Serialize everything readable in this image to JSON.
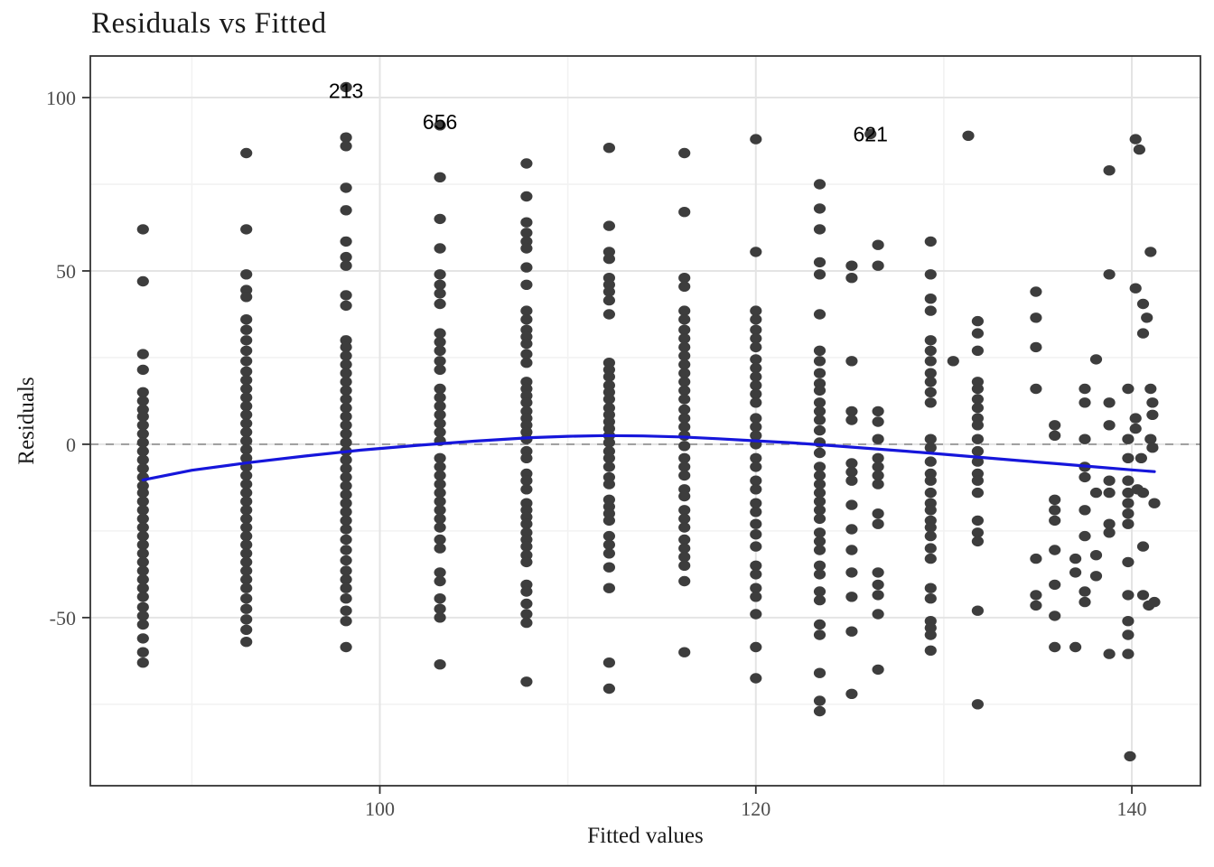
{
  "title": "Residuals vs Fitted",
  "chart_data": {
    "type": "scatter",
    "title": "Residuals vs Fitted",
    "xlabel": "Fitted values",
    "ylabel": "Residuals",
    "xlim": [
      84.6,
      143.65
    ],
    "ylim": [
      -98.5,
      112
    ],
    "x_ticks": [
      100,
      120,
      140
    ],
    "x_minor_ticks": [
      90,
      110,
      130
    ],
    "y_ticks": [
      -50,
      0,
      50,
      100
    ],
    "y_minor_ticks": [
      -75,
      -25,
      25,
      75
    ],
    "grid": true,
    "legend": "none",
    "zero_line": {
      "y": 0,
      "style": "dashed",
      "color": "#909090"
    },
    "colors": {
      "point": "#3d3d3d",
      "smooth": "#1616db",
      "grid_major": "#e4e4e4",
      "grid_minor": "#f2f2f2",
      "panel_border": "#333333",
      "tick": "#333333",
      "tick_label": "#4d4d4d"
    },
    "annotations": [
      {
        "label": "213",
        "x": 98.2,
        "y": 102
      },
      {
        "label": "656",
        "x": 103.2,
        "y": 93
      },
      {
        "label": "621",
        "x": 126.1,
        "y": 89.5
      }
    ],
    "smooth_line": [
      [
        87.4,
        -10.3
      ],
      [
        90,
        -7.5
      ],
      [
        93,
        -5.3
      ],
      [
        96,
        -3.4
      ],
      [
        99,
        -1.7
      ],
      [
        102,
        -0.3
      ],
      [
        105,
        0.9
      ],
      [
        108,
        1.9
      ],
      [
        110,
        2.3
      ],
      [
        112,
        2.5
      ],
      [
        114,
        2.4
      ],
      [
        116,
        2.1
      ],
      [
        118,
        1.6
      ],
      [
        120,
        1.0
      ],
      [
        122,
        0.4
      ],
      [
        124,
        -0.4
      ],
      [
        126,
        -1.2
      ],
      [
        128,
        -2.0
      ],
      [
        130,
        -2.9
      ],
      [
        132,
        -3.8
      ],
      [
        134,
        -4.7
      ],
      [
        136,
        -5.6
      ],
      [
        138,
        -6.5
      ],
      [
        140,
        -7.4
      ],
      [
        141.2,
        -7.9
      ]
    ],
    "point_columns": [
      {
        "x": 87.4,
        "residuals": [
          62,
          47,
          26,
          21.5,
          15,
          12.5,
          10,
          8,
          5.5,
          3,
          0.5,
          -2,
          -4.5,
          -7,
          -9.5,
          -12,
          -14,
          -16.5,
          -19,
          -21.5,
          -24,
          -26.5,
          -29,
          -31.5,
          -34,
          -36.5,
          -39,
          -41.5,
          -44,
          -47,
          -49.5,
          -52,
          -56,
          -60,
          -63
        ]
      },
      {
        "x": 92.9,
        "residuals": [
          84,
          62,
          49,
          44.5,
          42.5,
          36,
          33,
          30,
          27,
          24,
          21,
          18.5,
          16,
          13.5,
          11,
          8.5,
          6,
          3.5,
          1,
          -1.5,
          -4,
          -6.5,
          -9,
          -11.5,
          -14,
          -16.5,
          -19,
          -21.5,
          -24,
          -26.5,
          -29,
          -31.5,
          -34,
          -36.5,
          -39,
          -41.5,
          -44.5,
          -47.5,
          -50.5,
          -53.5,
          -57
        ]
      },
      {
        "x": 98.2,
        "residuals": [
          103,
          88.5,
          86,
          74,
          67.5,
          58.5,
          54,
          51.5,
          43,
          40,
          30,
          28,
          25.5,
          23,
          20.5,
          18,
          15.5,
          13,
          10.5,
          8,
          5.5,
          3,
          0.5,
          -2,
          -4.5,
          -7,
          -9.5,
          -12,
          -14.5,
          -17,
          -19.5,
          -22,
          -24.5,
          -27.5,
          -30.5,
          -33.5,
          -36.5,
          -39,
          -41.5,
          -44.5,
          -48,
          -51,
          -58.5
        ]
      },
      {
        "x": 103.2,
        "residuals": [
          92,
          77,
          65,
          56.5,
          49,
          46,
          43.5,
          40.5,
          32,
          29.5,
          27,
          24,
          21.5,
          16,
          13.5,
          11,
          8.5,
          6,
          3.5,
          1,
          -4,
          -6.5,
          -9,
          -11.5,
          -14,
          -16.5,
          -19,
          -21.5,
          -24,
          -27.5,
          -30,
          -37,
          -39.5,
          -44.5,
          -47.5,
          -50,
          -63.5
        ]
      },
      {
        "x": 107.8,
        "residuals": [
          81,
          71.5,
          64,
          61,
          58.5,
          56.5,
          51,
          46,
          38.5,
          36,
          33,
          31,
          29,
          26,
          23.5,
          18,
          16,
          14,
          12,
          9.5,
          7.5,
          5.5,
          3.5,
          1.5,
          -2,
          -4,
          -8.5,
          -10.5,
          -13,
          -17,
          -19,
          -21,
          -23,
          -25.5,
          -27.5,
          -29.5,
          -32,
          -34,
          -40.5,
          -42.5,
          -46,
          -49,
          -51.5,
          -68.5
        ]
      },
      {
        "x": 112.2,
        "residuals": [
          85.5,
          63,
          55.5,
          53.5,
          48,
          46,
          44,
          41.5,
          37.5,
          23.5,
          21.5,
          19.5,
          17,
          15,
          13,
          10.5,
          8.5,
          6.5,
          4.5,
          2.5,
          0.5,
          -2,
          -4,
          -6.5,
          -9.5,
          -11.5,
          -16,
          -18,
          -20,
          -22,
          -26.5,
          -29,
          -31.5,
          -35.5,
          -41.5,
          -63,
          -70.5
        ]
      },
      {
        "x": 116.2,
        "residuals": [
          84,
          67,
          48,
          45.5,
          38.5,
          36,
          33,
          30.5,
          28,
          25.5,
          23,
          20.5,
          18,
          15.5,
          13,
          10,
          7.5,
          5,
          2.5,
          -0.5,
          -4,
          -6.5,
          -9,
          -13,
          -15,
          -19,
          -21.5,
          -24,
          -27.5,
          -30,
          -32.5,
          -35,
          -39.5,
          -60
        ]
      },
      {
        "x": 120.0,
        "residuals": [
          88,
          55.5,
          38.5,
          36,
          33,
          30.5,
          28,
          24.5,
          22,
          19.5,
          17,
          14.5,
          12,
          7.5,
          5,
          2.5,
          0,
          -4,
          -6.5,
          -10.5,
          -13,
          -17,
          -19.5,
          -23,
          -26,
          -29.5,
          -35,
          -37.5,
          -41.5,
          -44,
          -49,
          -58.5,
          -67.5
        ]
      },
      {
        "x": 123.4,
        "residuals": [
          75,
          68,
          62,
          52.5,
          49,
          37.5,
          27,
          24,
          20.5,
          17.5,
          15.5,
          12,
          9.5,
          7,
          4,
          0.5,
          -2.5,
          -6.5,
          -9,
          -11.5,
          -14,
          -16.5,
          -19,
          -21.5,
          -25.5,
          -28,
          -30.5,
          -35,
          -37.5,
          -42.5,
          -45,
          -52,
          -55,
          -66,
          -74,
          -77
        ]
      },
      {
        "x": 125.1,
        "residuals": [
          51.5,
          48,
          24,
          9.5,
          7,
          -5.5,
          -8,
          -10.5,
          -17.5,
          -24.5,
          -30.5,
          -37,
          -44,
          -54,
          -72
        ]
      },
      {
        "x": 126.5,
        "residuals": [
          57.5,
          51.5,
          9.5,
          6.5,
          1.5,
          -4,
          -6.5,
          -9,
          -11.5,
          -20,
          -23,
          -37,
          -40.5,
          -43.5,
          -49,
          -65
        ]
      },
      {
        "x": 129.3,
        "residuals": [
          58.5,
          49,
          42,
          38.5,
          30,
          27,
          24,
          20.5,
          18,
          15,
          12,
          1.5,
          -1,
          -5,
          -8.5,
          -10.5,
          -14,
          -17,
          -19,
          -22,
          -24,
          -26.5,
          -30,
          -33,
          -41.5,
          -44.5,
          -51,
          -53,
          -55,
          -59.5
        ]
      },
      {
        "x": 131.8,
        "residuals": [
          35.5,
          32,
          27,
          18,
          16,
          13,
          10.5,
          7.5,
          5.5,
          1.5,
          -2,
          -5,
          -8.5,
          -10.5,
          -14,
          -22,
          -25.5,
          -28,
          -48,
          -75
        ]
      }
    ],
    "scatter_points": [
      [
        126.1,
        89.5
      ],
      [
        130.5,
        24
      ],
      [
        131.3,
        89
      ],
      [
        134.9,
        44
      ],
      [
        134.9,
        36.5
      ],
      [
        134.9,
        28
      ],
      [
        134.9,
        16
      ],
      [
        134.9,
        -33
      ],
      [
        134.9,
        -43.5
      ],
      [
        134.9,
        -46.5
      ],
      [
        135.9,
        5.5
      ],
      [
        135.9,
        2.5
      ],
      [
        135.9,
        -16
      ],
      [
        135.9,
        -19
      ],
      [
        135.9,
        -22
      ],
      [
        135.9,
        -30.5
      ],
      [
        135.9,
        -40.5
      ],
      [
        135.9,
        -49.5
      ],
      [
        135.9,
        -58.5
      ],
      [
        137,
        -33
      ],
      [
        137,
        -37
      ],
      [
        137,
        -58.5
      ],
      [
        137.5,
        16
      ],
      [
        137.5,
        12
      ],
      [
        137.5,
        1.5
      ],
      [
        137.5,
        -6.5
      ],
      [
        137.5,
        -9.5
      ],
      [
        137.5,
        -19
      ],
      [
        137.5,
        -26.5
      ],
      [
        137.5,
        -42.5
      ],
      [
        137.5,
        -45.5
      ],
      [
        138.1,
        24.5
      ],
      [
        138.1,
        -14
      ],
      [
        138.1,
        -32
      ],
      [
        138.1,
        -38
      ],
      [
        138.8,
        79
      ],
      [
        138.8,
        49
      ],
      [
        138.8,
        12
      ],
      [
        138.8,
        5.5
      ],
      [
        138.8,
        -10.5
      ],
      [
        138.8,
        -14
      ],
      [
        138.8,
        -23
      ],
      [
        138.8,
        -25.5
      ],
      [
        138.8,
        -60.5
      ],
      [
        139.8,
        16
      ],
      [
        139.8,
        1.5
      ],
      [
        139.8,
        -4
      ],
      [
        139.8,
        -10.5
      ],
      [
        139.8,
        -14
      ],
      [
        139.8,
        -17
      ],
      [
        139.8,
        -20
      ],
      [
        139.8,
        -23
      ],
      [
        139.8,
        -34
      ],
      [
        139.8,
        -43.5
      ],
      [
        139.8,
        -51
      ],
      [
        139.8,
        -55
      ],
      [
        139.8,
        -60.5
      ],
      [
        139.9,
        -90
      ],
      [
        140.2,
        88
      ],
      [
        140.4,
        85
      ],
      [
        140.2,
        45
      ],
      [
        140.6,
        40.5
      ],
      [
        140.8,
        36.5
      ],
      [
        140.6,
        32
      ],
      [
        140.2,
        7.5
      ],
      [
        140.2,
        4.5
      ],
      [
        140.5,
        -4
      ],
      [
        140.3,
        -13
      ],
      [
        140.6,
        -14
      ],
      [
        140.6,
        -29.5
      ],
      [
        140.6,
        -43.5
      ],
      [
        140.9,
        -46.5
      ],
      [
        141,
        55.5
      ],
      [
        141,
        16
      ],
      [
        141.1,
        12
      ],
      [
        141.1,
        8.5
      ],
      [
        141,
        1.5
      ],
      [
        141.1,
        -1
      ],
      [
        141.2,
        -17
      ],
      [
        141.2,
        -45.5
      ]
    ],
    "point_style": {
      "rx": 6.6,
      "ry": 5.7
    }
  }
}
